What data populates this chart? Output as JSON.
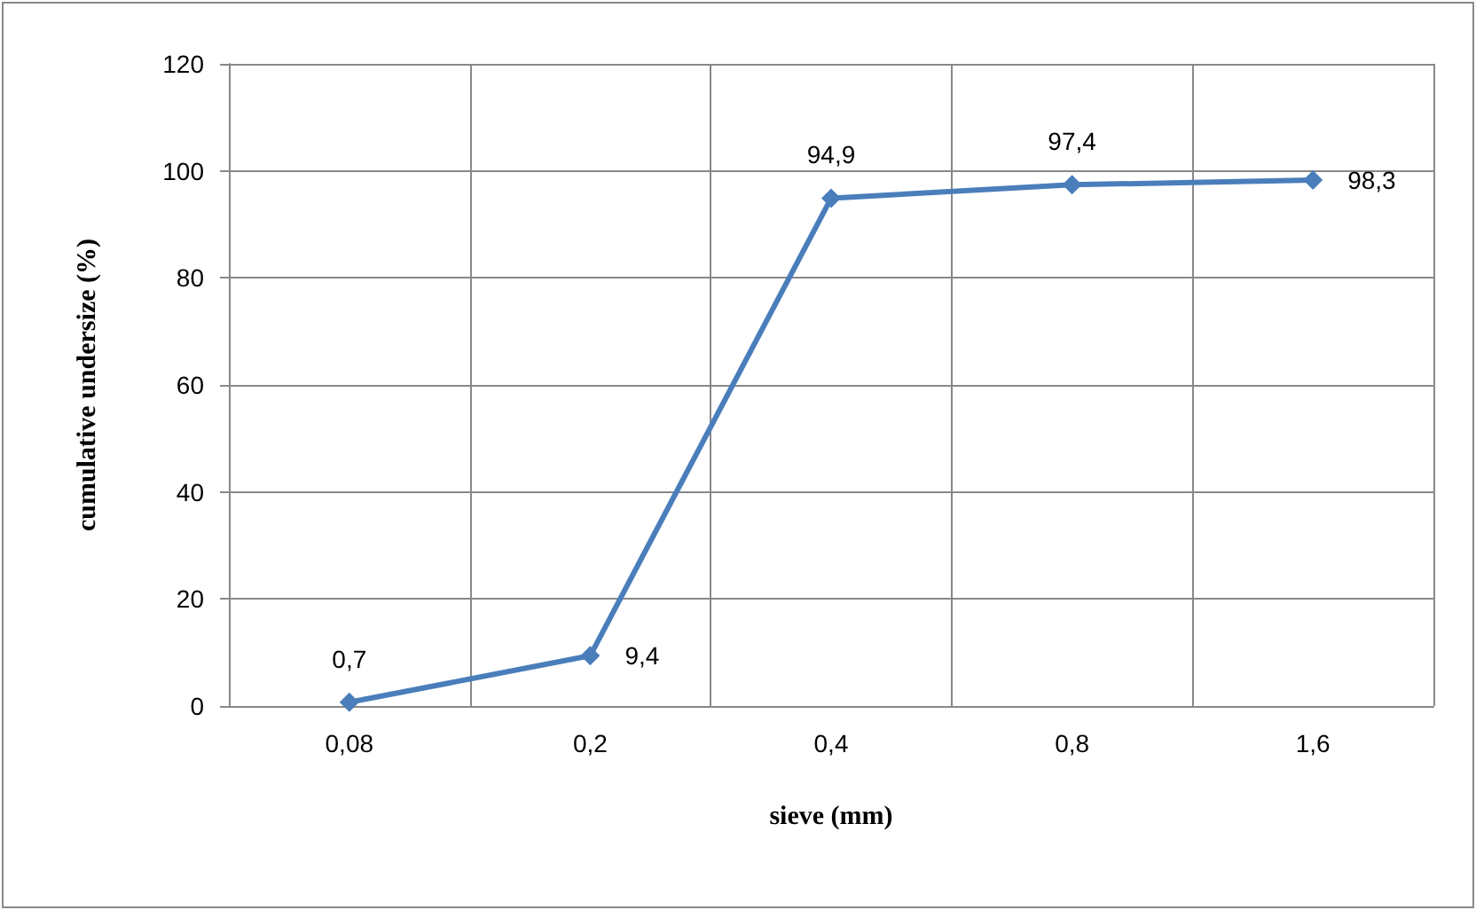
{
  "chart_data": {
    "type": "line",
    "xlabel": "sieve (mm)",
    "ylabel": "cumulative undersize (%)",
    "categories": [
      "0,08",
      "0,2",
      "0,4",
      "0,8",
      "1,6"
    ],
    "series": [
      {
        "color": "#4a7ebb",
        "values": [
          0.7,
          9.4,
          94.9,
          97.4,
          98.3
        ],
        "value_labels": [
          "0,7",
          "9,4",
          "94,9",
          "97,4",
          "98,3"
        ]
      }
    ],
    "ylim": [
      0,
      120
    ],
    "yticks": [
      0,
      20,
      40,
      60,
      80,
      100,
      120
    ],
    "grid": true,
    "marker": "diamond",
    "line_style": "solid"
  }
}
